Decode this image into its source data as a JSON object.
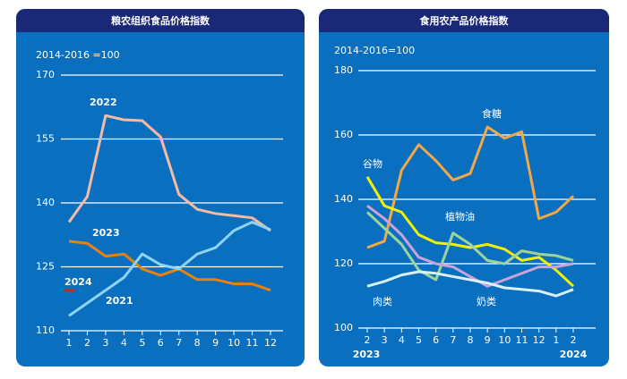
{
  "chart_data": [
    {
      "type": "line",
      "title": "粮农组织食品价格指数",
      "subtitle": "2014-2016 =100",
      "categories": [
        "1",
        "2",
        "3",
        "4",
        "5",
        "6",
        "7",
        "8",
        "9",
        "10",
        "11",
        "12"
      ],
      "series": [
        {
          "name": "2022",
          "color": "#f6bba3",
          "values": [
            135.5,
            141.5,
            160.5,
            159.5,
            159.3,
            155.5,
            142,
            138.5,
            137.5,
            137,
            136.5,
            133.5
          ]
        },
        {
          "name": "2023",
          "color": "#e8820e",
          "values": [
            131,
            130.5,
            127.5,
            128,
            124.5,
            123,
            124.5,
            122,
            122,
            121,
            121,
            119.5
          ]
        },
        {
          "name": "2021",
          "color": "#8fd3f5",
          "values": [
            113.5,
            116.5,
            119.5,
            122.5,
            128,
            125.5,
            124.5,
            128,
            129.5,
            133.5,
            135.5,
            133.7
          ]
        },
        {
          "name": "2024",
          "color": "#d62020",
          "values": [
            119.5,
            null,
            null,
            null,
            null,
            null,
            null,
            null,
            null,
            null,
            null,
            null
          ]
        }
      ],
      "ylim": [
        110,
        170
      ],
      "yticks": [
        110,
        125,
        140,
        155,
        170
      ],
      "grid": true
    },
    {
      "type": "line",
      "title": "食用农产品价格指数",
      "subtitle": "2014-2016=100",
      "categories": [
        "2",
        "3",
        "4",
        "5",
        "6",
        "7",
        "8",
        "9",
        "10",
        "11",
        "12",
        "1",
        "2"
      ],
      "annotations": [
        "2023",
        "2024"
      ],
      "series": [
        {
          "name": "食糖",
          "color": "#f0a848",
          "values": [
            125,
            127,
            149,
            157,
            152,
            146,
            148,
            162.5,
            159,
            161,
            134,
            136,
            141
          ]
        },
        {
          "name": "谷物",
          "color": "#f2f200",
          "values": [
            147,
            138,
            136,
            129,
            126.5,
            126,
            125,
            126,
            124.5,
            121,
            122,
            118,
            113
          ]
        },
        {
          "name": "植物油",
          "color": "#9ed39a",
          "values": [
            136,
            131,
            126,
            118,
            115,
            129.5,
            126,
            121,
            120,
            124,
            123,
            122.5,
            121
          ]
        },
        {
          "name": "奶类",
          "color": "#c9a3d9",
          "values": [
            138,
            134,
            129,
            122,
            120,
            119,
            116,
            113,
            115,
            117,
            119,
            119,
            120
          ]
        },
        {
          "name": "肉类",
          "color": "#d8f0f8",
          "values": [
            113,
            114.5,
            116.5,
            117.5,
            117,
            116,
            115,
            114,
            112.5,
            112,
            111.5,
            110,
            112
          ]
        }
      ],
      "ylim": [
        100,
        180
      ],
      "yticks": [
        100,
        120,
        140,
        160,
        180
      ],
      "grid": true
    }
  ]
}
